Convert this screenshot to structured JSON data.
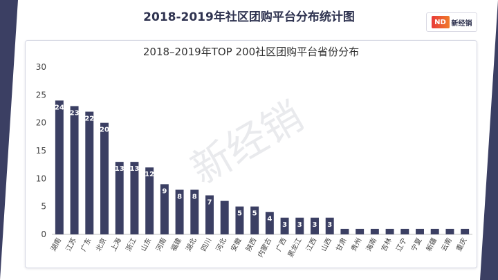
{
  "page": {
    "header_title": "2018-2019年社区团购平台分布统计图",
    "watermark": "新经销",
    "logo": {
      "text": "新经销"
    }
  },
  "colors": {
    "bar": "#3b3f63",
    "side_panels": "#3b3f63",
    "axis_text": "#444444",
    "data_label": "#ffffff"
  },
  "chart_data": {
    "type": "bar",
    "title": "2018–2019年TOP 200社区团购平台省份分布",
    "xlabel": "",
    "ylabel": "",
    "ylim": [
      0,
      30
    ],
    "yticks": [
      0,
      5,
      10,
      15,
      20,
      25,
      30
    ],
    "grid": false,
    "categories": [
      "湖南",
      "江苏",
      "广东",
      "北京",
      "上海",
      "浙江",
      "山东",
      "河南",
      "福建",
      "湖北",
      "四川",
      "河北",
      "安徽",
      "陕西",
      "内蒙古",
      "广西",
      "黑龙江",
      "江西",
      "山西",
      "甘肃",
      "贵州",
      "海南",
      "吉林",
      "辽宁",
      "宁夏",
      "新疆",
      "云南",
      "重庆"
    ],
    "values": [
      24,
      23,
      22,
      20,
      13,
      13,
      12,
      9,
      8,
      8,
      7,
      6,
      5,
      5,
      4,
      3,
      3,
      3,
      3,
      1,
      1,
      1,
      1,
      1,
      1,
      1,
      1,
      1
    ],
    "data_labels": [
      "24",
      "23",
      "22",
      "20",
      "13",
      "13",
      "12",
      "9",
      "8",
      "8",
      "7",
      "",
      "5",
      "5",
      "4",
      "3",
      "3",
      "3",
      "3",
      "",
      "",
      "",
      "",
      "",
      "",
      "",
      "",
      ""
    ]
  }
}
